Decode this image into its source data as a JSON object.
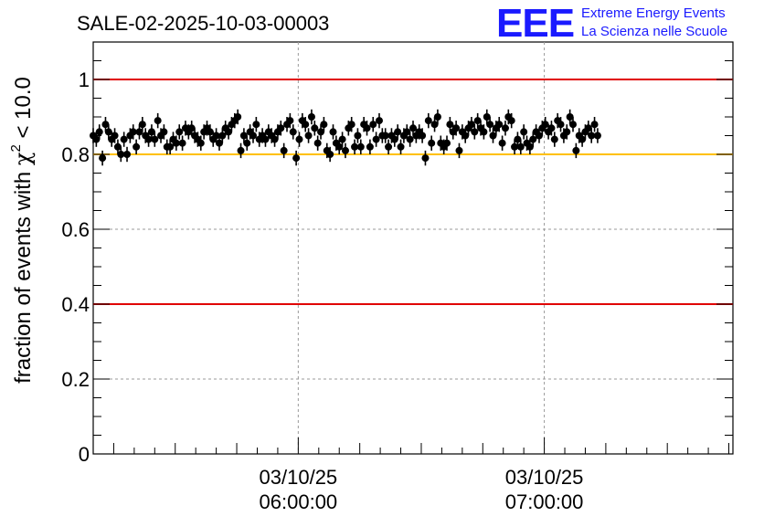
{
  "chart_data": {
    "type": "scatter",
    "title": "SALE-02-2025-10-03-00003",
    "logo": {
      "letters": "EEE",
      "line1": "Extreme Energy Events",
      "line2": "La Scienza nelle Scuole",
      "color": "#1a1aff"
    },
    "ylabel": "fraction of events with χ² < 10.0",
    "ylabel_parts": {
      "pre": "fraction of events with ",
      "symbol": "χ",
      "sup": "2",
      "post": " < 10.0"
    },
    "xlabel": "",
    "ylim": [
      0,
      1.1
    ],
    "y_ticks": [
      {
        "value": 0,
        "label": "0"
      },
      {
        "value": 0.2,
        "label": "0.2"
      },
      {
        "value": 0.4,
        "label": "0.4"
      },
      {
        "value": 0.6,
        "label": "0.6"
      },
      {
        "value": 0.8,
        "label": "0.8"
      },
      {
        "value": 1.0,
        "label": "1"
      }
    ],
    "xlim": [
      "03/10/25 05:10:00",
      "03/10/25 07:46:00"
    ],
    "x_ticks": [
      {
        "time": "06:00:00",
        "date": "03/10/25"
      },
      {
        "time": "07:00:00",
        "date": "03/10/25"
      }
    ],
    "grid": true,
    "reference_lines": [
      {
        "y": 1.0,
        "color": "#e00000"
      },
      {
        "y": 0.8,
        "color": "#ffc000"
      },
      {
        "y": 0.4,
        "color": "#e00000"
      }
    ],
    "series": [
      {
        "marker_color": "#000000",
        "error": 0.02,
        "t_start": "05:10:00",
        "t_step_seconds": 45,
        "values": [
          0.85,
          0.84,
          0.86,
          0.79,
          0.88,
          0.86,
          0.84,
          0.85,
          0.82,
          0.8,
          0.84,
          0.8,
          0.85,
          0.86,
          0.82,
          0.86,
          0.88,
          0.85,
          0.84,
          0.86,
          0.84,
          0.89,
          0.85,
          0.86,
          0.82,
          0.82,
          0.84,
          0.83,
          0.86,
          0.83,
          0.87,
          0.86,
          0.87,
          0.85,
          0.84,
          0.83,
          0.86,
          0.87,
          0.86,
          0.84,
          0.85,
          0.83,
          0.85,
          0.87,
          0.86,
          0.88,
          0.89,
          0.9,
          0.81,
          0.85,
          0.83,
          0.86,
          0.85,
          0.88,
          0.84,
          0.85,
          0.84,
          0.86,
          0.85,
          0.84,
          0.86,
          0.87,
          0.81,
          0.88,
          0.89,
          0.86,
          0.79,
          0.84,
          0.89,
          0.88,
          0.85,
          0.9,
          0.87,
          0.83,
          0.86,
          0.88,
          0.81,
          0.8,
          0.86,
          0.83,
          0.82,
          0.84,
          0.81,
          0.87,
          0.88,
          0.82,
          0.85,
          0.82,
          0.88,
          0.87,
          0.82,
          0.88,
          0.84,
          0.89,
          0.85,
          0.85,
          0.82,
          0.85,
          0.84,
          0.86,
          0.82,
          0.85,
          0.86,
          0.84,
          0.87,
          0.85,
          0.86,
          0.85,
          0.79,
          0.89,
          0.83,
          0.88,
          0.9,
          0.83,
          0.82,
          0.83,
          0.88,
          0.86,
          0.87,
          0.81,
          0.86,
          0.85,
          0.87,
          0.88,
          0.86,
          0.89,
          0.87,
          0.86,
          0.9,
          0.88,
          0.85,
          0.87,
          0.88,
          0.83,
          0.87,
          0.9,
          0.89,
          0.82,
          0.84,
          0.82,
          0.86,
          0.83,
          0.82,
          0.84,
          0.86,
          0.85,
          0.87,
          0.88,
          0.86,
          0.87,
          0.84,
          0.89,
          0.88,
          0.85,
          0.86,
          0.9,
          0.88,
          0.81,
          0.85,
          0.84,
          0.86,
          0.87,
          0.85,
          0.88,
          0.85
        ]
      }
    ]
  }
}
